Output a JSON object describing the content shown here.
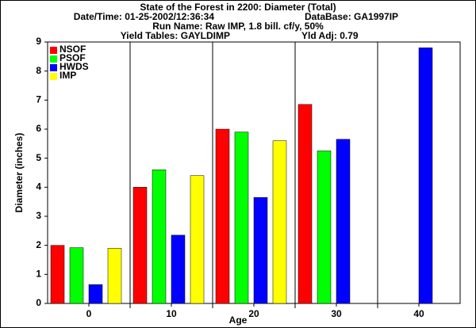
{
  "chart_data": {
    "type": "bar",
    "title": "State of the Forest in 2200: Diameter (Total)",
    "subtitle": [
      "Date/Time: 01-25-2002/12:36:34",
      "DataBase: GA1997IP",
      "Run Name: Raw IMP, 1.8 bill. cf/y, 50%",
      "Yield Tables: GAYLDIMP",
      "Yld Adj: 0.79"
    ],
    "x_label": "Age",
    "y_label": "Diameter (inches)",
    "categories": [
      "0",
      "10",
      "20",
      "30",
      "40"
    ],
    "series": [
      {
        "name": "NSOF",
        "color": "#ff0000",
        "values": [
          2.0,
          4.0,
          6.0,
          6.85,
          null
        ]
      },
      {
        "name": "PSOF",
        "color": "#00ff00",
        "values": [
          1.92,
          4.6,
          5.9,
          5.25,
          null
        ]
      },
      {
        "name": "HWDS",
        "color": "#0000ff",
        "values": [
          0.65,
          2.35,
          3.65,
          5.65,
          8.8
        ]
      },
      {
        "name": "IMP",
        "color": "#ffff00",
        "values": [
          1.9,
          4.4,
          5.6,
          null,
          null
        ]
      }
    ],
    "ylim": [
      0,
      9
    ],
    "yticks": [
      0,
      1,
      2,
      3,
      4,
      5,
      6,
      7,
      8,
      9
    ],
    "legend": "upper left"
  }
}
